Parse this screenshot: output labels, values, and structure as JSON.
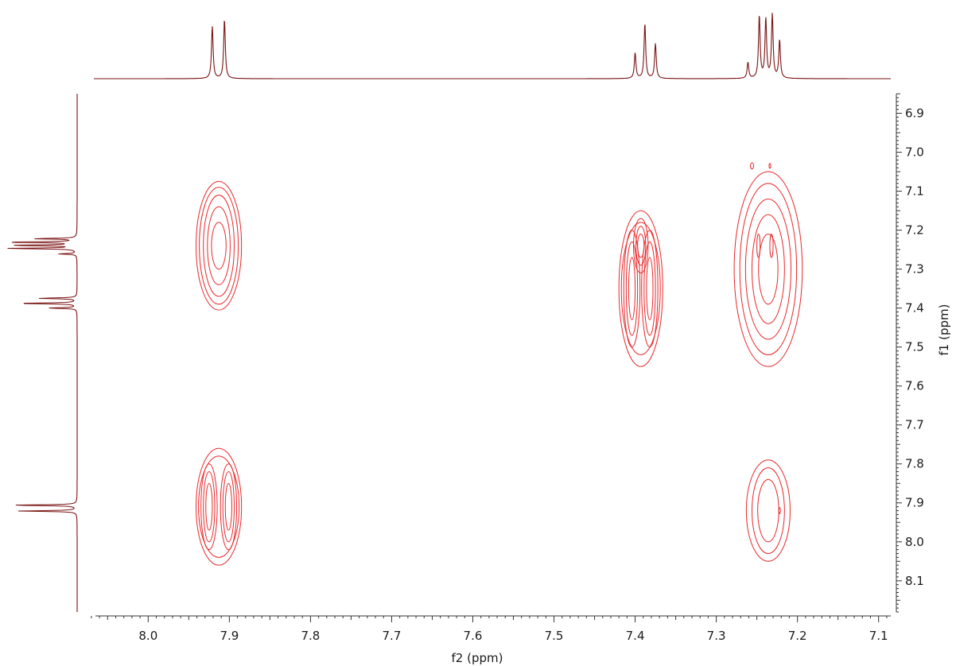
{
  "chart_data": {
    "type": "contour",
    "xlabel": "f2 (ppm)",
    "ylabel": "f1 (ppm)",
    "xlim": [
      8.065,
      7.085
    ],
    "ylim": [
      6.85,
      8.18
    ],
    "x_major_ticks": [
      8.0,
      7.9,
      7.8,
      7.7,
      7.6,
      7.5,
      7.4,
      7.3,
      7.2,
      7.1
    ],
    "y_major_ticks": [
      6.9,
      7.0,
      7.1,
      7.2,
      7.3,
      7.4,
      7.5,
      7.6,
      7.7,
      7.8,
      7.9,
      8.0,
      8.1
    ],
    "grid": false,
    "colors": {
      "contour": "#e8282b",
      "projection": "#7a1212",
      "axis": "#333333"
    },
    "projection_peaks": [
      {
        "ppm": 7.921,
        "height": 0.82
      },
      {
        "ppm": 7.906,
        "height": 0.93
      },
      {
        "ppm": 7.4,
        "height": 0.4
      },
      {
        "ppm": 7.388,
        "height": 0.86
      },
      {
        "ppm": 7.375,
        "height": 0.55
      },
      {
        "ppm": 7.261,
        "height": 0.25
      },
      {
        "ppm": 7.247,
        "height": 0.98
      },
      {
        "ppm": 7.239,
        "height": 0.93
      },
      {
        "ppm": 7.231,
        "height": 1.0
      },
      {
        "ppm": 7.222,
        "height": 0.6
      }
    ],
    "cross_peaks": [
      {
        "f2": 7.913,
        "f1": 7.24,
        "rx": [
          0.009,
          0.014,
          0.019,
          0.024,
          0.028
        ],
        "ry": [
          0.06,
          0.1,
          0.13,
          0.15,
          0.165
        ],
        "split": false
      },
      {
        "f2": 7.913,
        "f1": 7.91,
        "rx": [
          0.004,
          0.007,
          0.01,
          0.013,
          0.016
        ],
        "ry": [
          0.06,
          0.09,
          0.11,
          0.13,
          0.15
        ],
        "split": true,
        "dx": 0.012
      },
      {
        "f2": 7.393,
        "f1": 7.35,
        "rx": [
          0.004,
          0.007,
          0.01,
          0.013,
          0.016
        ],
        "ry": [
          0.08,
          0.12,
          0.15,
          0.17,
          0.2
        ],
        "split": true,
        "dx": 0.011
      },
      {
        "f2": 7.393,
        "f1": 7.24,
        "rx": [
          0.004,
          0.006,
          0.009
        ],
        "ry": [
          0.03,
          0.05,
          0.07
        ],
        "split": false
      },
      {
        "f2": 7.236,
        "f1": 7.3,
        "rx": [
          0.012,
          0.02,
          0.028,
          0.035,
          0.042
        ],
        "ry": [
          0.09,
          0.14,
          0.18,
          0.22,
          0.25
        ],
        "split": false
      },
      {
        "f2": 7.248,
        "f1": 7.24,
        "rx": [
          0.002
        ],
        "ry": [
          0.03
        ],
        "split": false
      },
      {
        "f2": 7.232,
        "f1": 7.24,
        "rx": [
          0.002
        ],
        "ry": [
          0.03
        ],
        "split": false
      },
      {
        "f2": 7.236,
        "f1": 7.92,
        "rx": [
          0.013,
          0.02,
          0.027
        ],
        "ry": [
          0.08,
          0.11,
          0.13
        ],
        "split": false
      },
      {
        "f2": 7.256,
        "f1": 7.035,
        "rx": [
          0.002
        ],
        "ry": [
          0.008
        ],
        "split": false
      },
      {
        "f2": 7.234,
        "f1": 7.035,
        "rx": [
          0.001
        ],
        "ry": [
          0.006
        ],
        "split": false
      },
      {
        "f2": 7.222,
        "f1": 7.92,
        "rx": [
          0.001
        ],
        "ry": [
          0.008
        ],
        "split": false
      }
    ]
  }
}
